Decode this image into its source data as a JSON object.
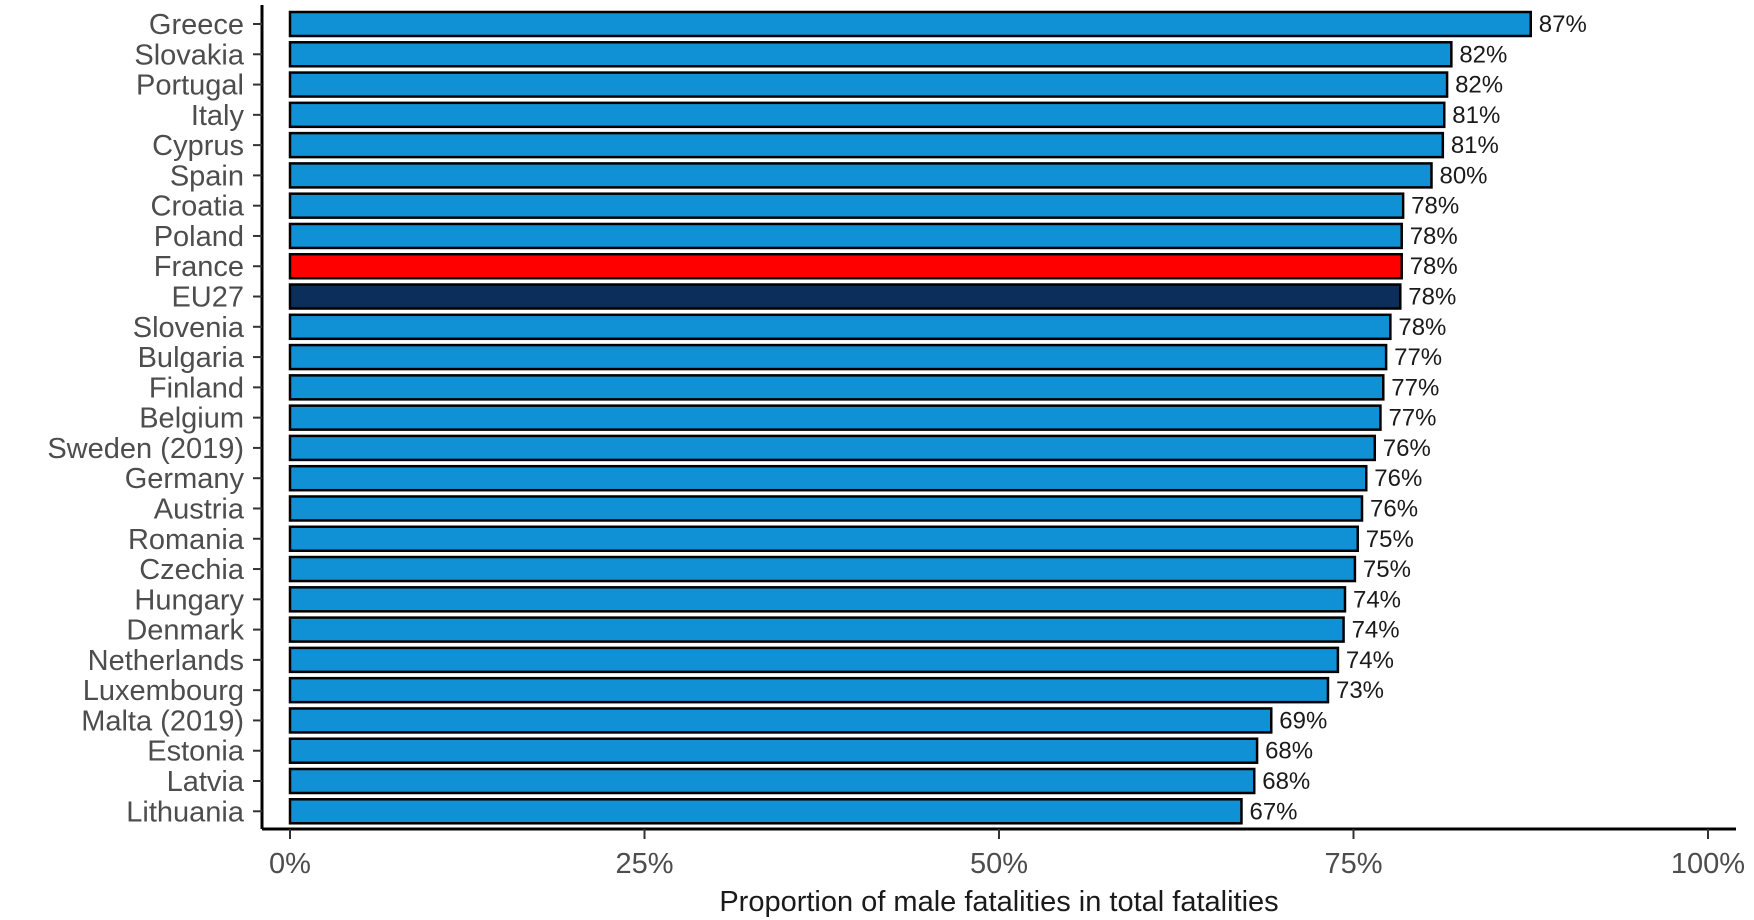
{
  "chart_data": {
    "type": "bar",
    "orientation": "horizontal",
    "xlabel": "Proportion of male fatalities in total fatalities",
    "ylabel": "",
    "xlim": [
      0,
      100
    ],
    "xticks": [
      0,
      25,
      50,
      75,
      100
    ],
    "xtick_labels": [
      "0%",
      "25%",
      "50%",
      "75%",
      "100%"
    ],
    "grid": false,
    "categories": [
      "Greece",
      "Slovakia",
      "Portugal",
      "Italy",
      "Cyprus",
      "Spain",
      "Croatia",
      "Poland",
      "France",
      "EU27",
      "Slovenia",
      "Bulgaria",
      "Finland",
      "Belgium",
      "Sweden (2019)",
      "Germany",
      "Austria",
      "Romania",
      "Czechia",
      "Hungary",
      "Denmark",
      "Netherlands",
      "Luxembourg",
      "Malta (2019)",
      "Estonia",
      "Latvia",
      "Lithuania"
    ],
    "values": [
      87.5,
      81.9,
      81.6,
      81.4,
      81.3,
      80.5,
      78.5,
      78.4,
      78.4,
      78.3,
      77.6,
      77.3,
      77.1,
      76.9,
      76.5,
      75.9,
      75.6,
      75.3,
      75.1,
      74.4,
      74.3,
      73.9,
      73.2,
      69.2,
      68.2,
      68.0,
      67.1
    ],
    "value_labels": [
      "87%",
      "82%",
      "82%",
      "81%",
      "81%",
      "80%",
      "78%",
      "78%",
      "78%",
      "78%",
      "78%",
      "77%",
      "77%",
      "77%",
      "76%",
      "76%",
      "76%",
      "75%",
      "75%",
      "74%",
      "74%",
      "74%",
      "73%",
      "69%",
      "68%",
      "68%",
      "67%"
    ],
    "colors": {
      "default": "#1191d5",
      "France": "#ff0000",
      "EU27": "#0b2f5a",
      "bar_outline": "#000000"
    }
  }
}
